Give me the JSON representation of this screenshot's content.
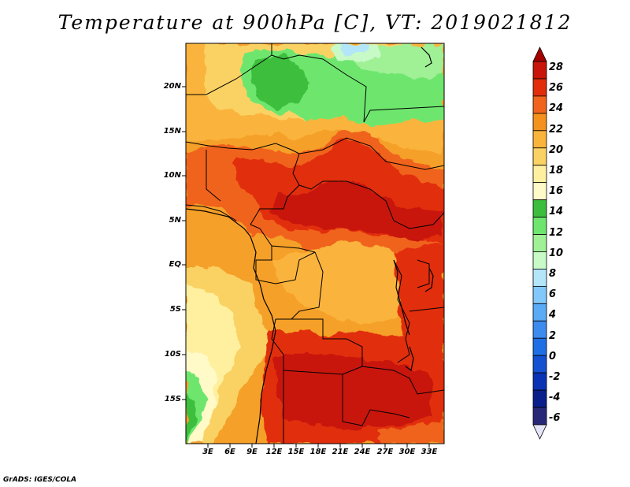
{
  "title": "Temperature at 900hPa [C], VT: 2019021812",
  "credit": "GrADS: IGES/COLA",
  "y_axis_labels": [
    "20N",
    "15N",
    "10N",
    "5N",
    "EQ",
    "5S",
    "10S",
    "15S"
  ],
  "x_axis_labels": [
    "3E",
    "6E",
    "9E",
    "12E",
    "15E",
    "18E",
    "21E",
    "24E",
    "27E",
    "30E",
    "33E"
  ],
  "colorbar": {
    "labels": [
      "28",
      "26",
      "24",
      "22",
      "20",
      "18",
      "16",
      "14",
      "12",
      "10",
      "8",
      "6",
      "4",
      "2",
      "0",
      "-2",
      "-4",
      "-6"
    ],
    "colors": [
      "#a50000",
      "#c8140a",
      "#e12d0a",
      "#f0641e",
      "#f5911e",
      "#fab43c",
      "#fad264",
      "#fff0a0",
      "#fffac8",
      "#3cbe3c",
      "#6ee66e",
      "#a0f096",
      "#c8fac8",
      "#b4e6fa",
      "#82c8fa",
      "#5aaaf5",
      "#3c8cf0",
      "#1e6ee6",
      "#1450d2",
      "#0a32b4",
      "#0a1e8c",
      "#282878",
      "#e6e6fa"
    ]
  }
}
